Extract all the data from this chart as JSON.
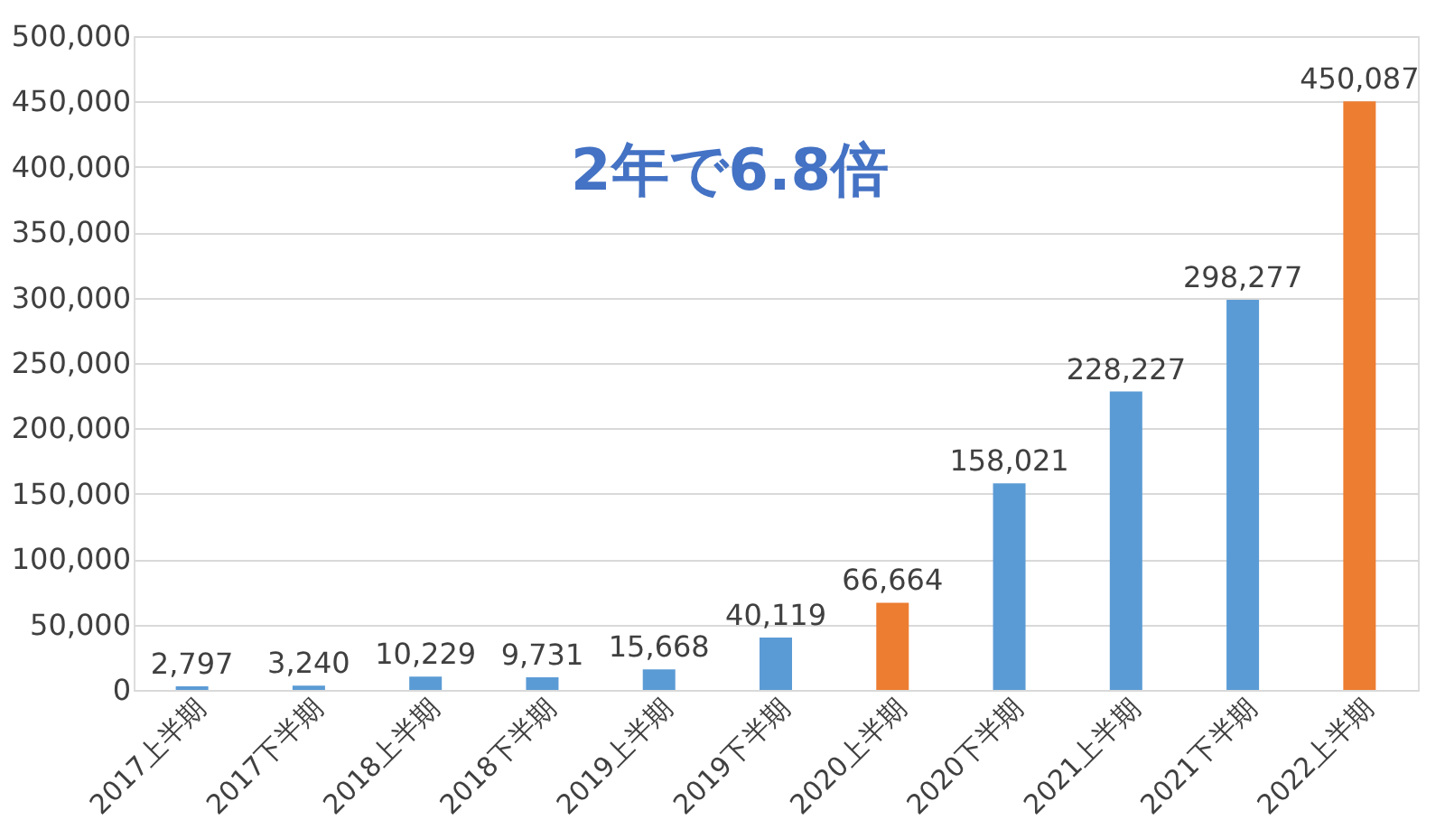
{
  "chart_data": {
    "type": "bar",
    "categories": [
      "2017上半期",
      "2017下半期",
      "2018上半期",
      "2018下半期",
      "2019上半期",
      "2019下半期",
      "2020上半期",
      "2020下半期",
      "2021上半期",
      "2021下半期",
      "2022上半期"
    ],
    "values": [
      2797,
      3240,
      10229,
      9731,
      15668,
      40119,
      66664,
      158021,
      228227,
      298277,
      450087
    ],
    "value_labels": [
      "2,797",
      "3,240",
      "10,229",
      "9,731",
      "15,668",
      "40,119",
      "66,664",
      "158,021",
      "228,227",
      "298,277",
      "450,087"
    ],
    "colors": [
      "#5b9bd5",
      "#5b9bd5",
      "#5b9bd5",
      "#5b9bd5",
      "#5b9bd5",
      "#5b9bd5",
      "#ed7d31",
      "#5b9bd5",
      "#5b9bd5",
      "#5b9bd5",
      "#ed7d31"
    ],
    "ylim": [
      0,
      500000
    ],
    "yticks": [
      {
        "value": 0,
        "label": "0"
      },
      {
        "value": 50000,
        "label": "50,000"
      },
      {
        "value": 100000,
        "label": "100,000"
      },
      {
        "value": 150000,
        "label": "150,000"
      },
      {
        "value": 200000,
        "label": "200,000"
      },
      {
        "value": 250000,
        "label": "250,000"
      },
      {
        "value": 300000,
        "label": "300,000"
      },
      {
        "value": 350000,
        "label": "350,000"
      },
      {
        "value": 400000,
        "label": "400,000"
      },
      {
        "value": 450000,
        "label": "450,000"
      },
      {
        "value": 500000,
        "label": "500,000"
      }
    ],
    "grid": "y",
    "annotations": [
      "2年で6.8倍"
    ]
  }
}
